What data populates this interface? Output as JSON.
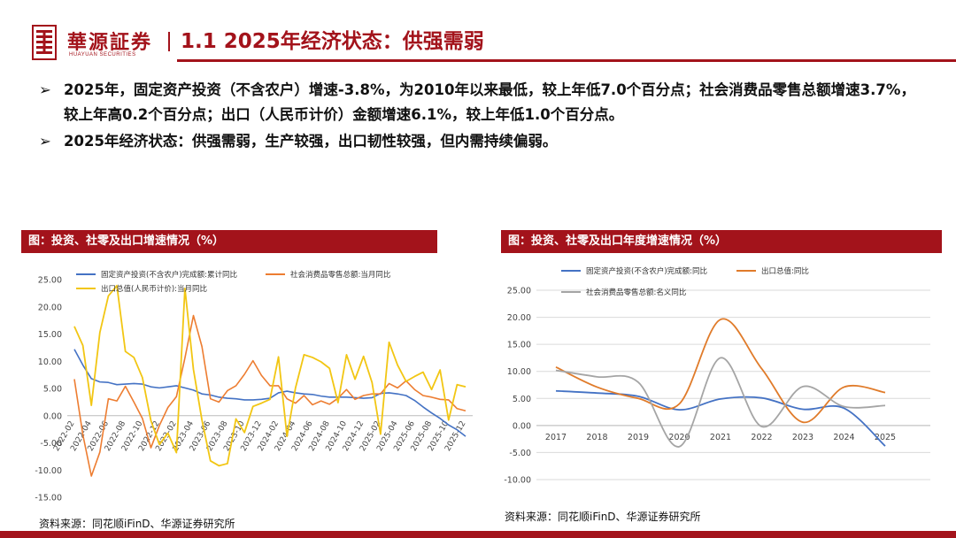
{
  "header": {
    "logo_name": "華源証券",
    "logo_sub": "HUAYUAN SECURITIES",
    "title": "1.1 2025年经济状态：供强需弱"
  },
  "bullets": [
    {
      "marker": "➢",
      "text": "2025年，固定资产投资（不含农户）增速-3.8%，为2010年以来最低，较上年低7.0个百分点；社会消费品零售总额增速3.7%，较上年高0.2个百分点；出口（人民币计价）金额增速6.1%，较上年低1.0个百分点。"
    },
    {
      "marker": "➢",
      "text": "2025年经济状态：供强需弱，生产较强，出口韧性较强，但内需持续偏弱。"
    }
  ],
  "left_panel": {
    "title": "图：投资、社零及出口增速情况（%）",
    "source": "资料来源：同花顺iFinD、华源证券研究所"
  },
  "right_panel": {
    "title": "图：投资、社零及出口年度增速情况（%）",
    "source": "资料来源：同花顺iFinD、华源证券研究所"
  },
  "colors": {
    "brand": "#a3131b",
    "investment": "#4472c4",
    "retail": "#ed7d31",
    "export_monthly": "#f2c613",
    "export_annual": "#e07b2a",
    "retail_annual": "#a5a5a5"
  },
  "chart_data": [
    {
      "type": "line",
      "ylim": [
        -15,
        25
      ],
      "yticks": [
        "25.00",
        "20.00",
        "15.00",
        "10.00",
        "5.00",
        "0.00",
        "-5.00",
        "-10.00",
        "-15.00"
      ],
      "x_labels": [
        "2022-02",
        "2022-04",
        "2022-06",
        "2022-08",
        "2022-10",
        "2022-12",
        "2023-02",
        "2023-04",
        "2023-06",
        "2023-08",
        "2023-10",
        "2023-12",
        "2024-02",
        "2024-04",
        "2024-06",
        "2024-08",
        "2024-10",
        "2024-12",
        "2025-02",
        "2025-04",
        "2025-06",
        "2025-08",
        "2025-10",
        "2025-12"
      ],
      "x": [
        "2022-02",
        "2022-03",
        "2022-04",
        "2022-05",
        "2022-06",
        "2022-07",
        "2022-08",
        "2022-09",
        "2022-10",
        "2022-11",
        "2022-12",
        "2023-01",
        "2023-02",
        "2023-03",
        "2023-04",
        "2023-05",
        "2023-06",
        "2023-07",
        "2023-08",
        "2023-09",
        "2023-10",
        "2023-11",
        "2023-12",
        "2024-01",
        "2024-02",
        "2024-03",
        "2024-04",
        "2024-05",
        "2024-06",
        "2024-07",
        "2024-08",
        "2024-09",
        "2024-10",
        "2024-11",
        "2024-12",
        "2025-01",
        "2025-02",
        "2025-03",
        "2025-04",
        "2025-05",
        "2025-06",
        "2025-07",
        "2025-08",
        "2025-09",
        "2025-10",
        "2025-11",
        "2025-12"
      ],
      "series": [
        {
          "name": "固定资产投资(不含农户)完成额:累计同比",
          "values": [
            12.2,
            9.3,
            6.8,
            6.2,
            6.1,
            5.7,
            5.8,
            5.9,
            5.8,
            5.3,
            5.1,
            5.3,
            5.5,
            5.1,
            4.7,
            4.0,
            3.8,
            3.4,
            3.2,
            3.1,
            2.9,
            2.9,
            3.0,
            3.2,
            4.2,
            4.5,
            4.2,
            4.0,
            3.9,
            3.6,
            3.4,
            3.4,
            3.4,
            3.3,
            3.2,
            3.3,
            4.1,
            4.2,
            4.0,
            3.7,
            2.8,
            1.6,
            0.5,
            -0.5,
            -1.7,
            -2.6,
            -3.8
          ]
        },
        {
          "name": "社会消费品零售总额:当月同比",
          "values": [
            6.7,
            -3.5,
            -11.1,
            -6.7,
            3.1,
            2.7,
            5.4,
            2.5,
            -0.5,
            -5.9,
            -1.8,
            1.5,
            3.5,
            10.6,
            18.4,
            12.7,
            3.1,
            2.5,
            4.6,
            5.5,
            7.6,
            10.1,
            7.4,
            5.5,
            5.5,
            3.1,
            2.3,
            3.7,
            2.0,
            2.7,
            2.1,
            3.2,
            4.8,
            3.0,
            3.7,
            4.0,
            4.0,
            5.9,
            5.1,
            6.4,
            4.8,
            3.7,
            3.4,
            3.0,
            2.9,
            1.3,
            0.9
          ]
        },
        {
          "name": "出口总值(人民币计价):当月同比",
          "values": [
            16.4,
            12.9,
            1.9,
            15.3,
            22.0,
            23.9,
            11.8,
            10.7,
            7.0,
            -0.9,
            -5.3,
            -3.2,
            -6.8,
            23.4,
            8.5,
            -0.8,
            -8.3,
            -9.2,
            -8.8,
            -0.6,
            -3.1,
            1.7,
            2.3,
            3.0,
            10.8,
            -3.8,
            5.1,
            11.2,
            10.7,
            9.9,
            8.7,
            2.4,
            11.2,
            6.7,
            10.9,
            6.1,
            -3.4,
            13.5,
            9.3,
            6.3,
            7.2,
            8.0,
            4.8,
            8.4,
            -0.8,
            5.7,
            5.3
          ]
        }
      ]
    },
    {
      "type": "line",
      "ylim": [
        -10,
        25
      ],
      "yticks": [
        "25.00",
        "20.00",
        "15.00",
        "10.00",
        "5.00",
        "0.00",
        "-5.00",
        "-10.00"
      ],
      "x": [
        "2017",
        "2018",
        "2019",
        "2020",
        "2021",
        "2022",
        "2023",
        "2024",
        "2025"
      ],
      "series": [
        {
          "name": "固定资产投资(不含农户)完成额:同比",
          "values": [
            6.4,
            6.0,
            5.4,
            2.9,
            4.9,
            5.1,
            3.0,
            3.2,
            -3.8
          ]
        },
        {
          "name": "出口总值:同比",
          "values": [
            10.8,
            7.1,
            5.0,
            4.0,
            19.6,
            10.5,
            0.6,
            7.1,
            6.1
          ]
        },
        {
          "name": "社会消费品零售总额:名义同比",
          "values": [
            10.2,
            9.0,
            8.0,
            -3.9,
            12.5,
            -0.2,
            7.2,
            3.5,
            3.7
          ]
        }
      ]
    }
  ]
}
